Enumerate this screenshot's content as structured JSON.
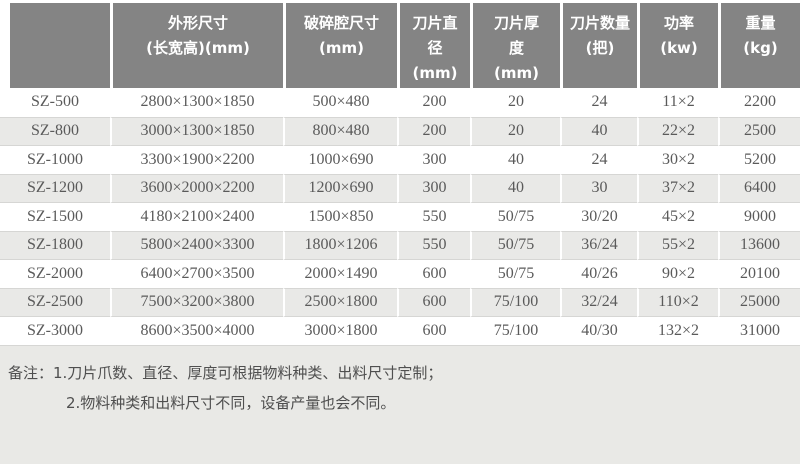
{
  "table": {
    "columns": [
      {
        "id": "model",
        "lines": [
          "",
          ""
        ]
      },
      {
        "id": "dimensions",
        "lines": [
          "外形尺寸",
          "(长宽高)(mm)"
        ]
      },
      {
        "id": "chamber",
        "lines": [
          "破碎腔尺寸",
          "(mm)"
        ]
      },
      {
        "id": "blade_diameter",
        "lines": [
          "刀片直",
          "径",
          "(mm)"
        ]
      },
      {
        "id": "blade_thickness",
        "lines": [
          "刀片厚",
          "度",
          "(mm)"
        ]
      },
      {
        "id": "blade_count",
        "lines": [
          "刀片数量",
          "(把)"
        ]
      },
      {
        "id": "power",
        "lines": [
          "功率",
          "(kw)"
        ]
      },
      {
        "id": "weight",
        "lines": [
          "重量",
          "(kg)"
        ]
      }
    ],
    "rows": [
      {
        "model": "SZ-500",
        "dimensions": "2800×1300×1850",
        "chamber": "500×480",
        "blade_diameter": "200",
        "blade_thickness": "20",
        "blade_count": "24",
        "power": "11×2",
        "weight": "2200"
      },
      {
        "model": "SZ-800",
        "dimensions": "3000×1300×1850",
        "chamber": "800×480",
        "blade_diameter": "200",
        "blade_thickness": "20",
        "blade_count": "40",
        "power": "22×2",
        "weight": "2500"
      },
      {
        "model": "SZ-1000",
        "dimensions": "3300×1900×2200",
        "chamber": "1000×690",
        "blade_diameter": "300",
        "blade_thickness": "40",
        "blade_count": "24",
        "power": "30×2",
        "weight": "5200"
      },
      {
        "model": "SZ-1200",
        "dimensions": "3600×2000×2200",
        "chamber": "1200×690",
        "blade_diameter": "300",
        "blade_thickness": "40",
        "blade_count": "30",
        "power": "37×2",
        "weight": "6400"
      },
      {
        "model": "SZ-1500",
        "dimensions": "4180×2100×2400",
        "chamber": "1500×850",
        "blade_diameter": "550",
        "blade_thickness": "50/75",
        "blade_count": "30/20",
        "power": "45×2",
        "weight": "9000"
      },
      {
        "model": "SZ-1800",
        "dimensions": "5800×2400×3300",
        "chamber": "1800×1206",
        "blade_diameter": "550",
        "blade_thickness": "50/75",
        "blade_count": "36/24",
        "power": "55×2",
        "weight": "13600"
      },
      {
        "model": "SZ-2000",
        "dimensions": "6400×2700×3500",
        "chamber": "2000×1490",
        "blade_diameter": "600",
        "blade_thickness": "50/75",
        "blade_count": "40/26",
        "power": "90×2",
        "weight": "20100"
      },
      {
        "model": "SZ-2500",
        "dimensions": "7500×3200×3800",
        "chamber": "2500×1800",
        "blade_diameter": "600",
        "blade_thickness": "75/100",
        "blade_count": "32/24",
        "power": "110×2",
        "weight": "25000"
      },
      {
        "model": "SZ-3000",
        "dimensions": "8600×3500×4000",
        "chamber": "3000×1800",
        "blade_diameter": "600",
        "blade_thickness": "75/100",
        "blade_count": "40/30",
        "power": "132×2",
        "weight": "31000"
      }
    ]
  },
  "notes": {
    "line1": "备注：1.刀片爪数、直径、厚度可根据物料种类、出料尺寸定制；",
    "line2": "2.物料种类和出料尺寸不同，设备产量也会不同。"
  },
  "colors": {
    "header_bg": "#848484",
    "header_text": "#ffffff",
    "row_alt_bg": "#e9e9e7",
    "notes_bg": "#e9e9e6",
    "data_text": "#5a5a5a",
    "border": "#d6d6d4"
  }
}
